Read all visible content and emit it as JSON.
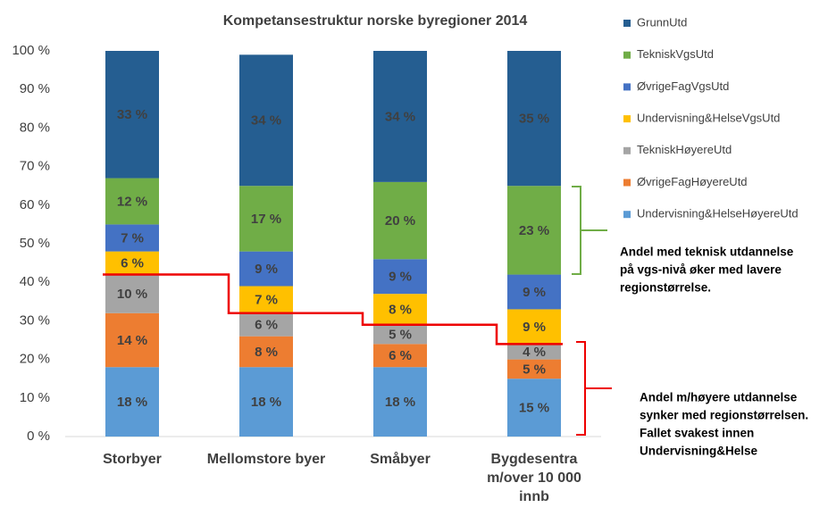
{
  "chart_data": {
    "type": "stacked_bar",
    "title": "Kompetansestruktur  norske byregioner 2014",
    "categories": [
      "Storbyer",
      "Mellomstore byer",
      "Småbyer",
      "Bygdesentra m/over 10 000 innb"
    ],
    "series": [
      {
        "name": "GrunnUtd",
        "color": "#255e91",
        "values": [
          33,
          34,
          34,
          35
        ],
        "value_labels": [
          "33 %",
          "34 %",
          "34 %",
          "35 %"
        ]
      },
      {
        "name": "TekniskVgsUtd",
        "color": "#70ad47",
        "values": [
          12,
          17,
          20,
          23
        ],
        "value_labels": [
          "12 %",
          "17 %",
          "20 %",
          "23 %"
        ]
      },
      {
        "name": "ØvrigeFagVgsUtd",
        "color": "#4472c4",
        "values": [
          7,
          9,
          9,
          9
        ],
        "value_labels": [
          "7 %",
          "9 %",
          "9 %",
          "9 %"
        ]
      },
      {
        "name": "Undervisning&HelseVgsUtd",
        "color": "#ffc000",
        "values": [
          6,
          7,
          8,
          9
        ],
        "value_labels": [
          "6 %",
          "7 %",
          "8 %",
          "9 %"
        ]
      },
      {
        "name": "TekniskHøyereUtd",
        "color": "#a5a5a5",
        "values": [
          10,
          6,
          5,
          4
        ],
        "value_labels": [
          "10 %",
          "6 %",
          "5 %",
          "4 %"
        ]
      },
      {
        "name": "ØvrigeFagHøyereUtd",
        "color": "#ed7d31",
        "values": [
          14,
          8,
          6,
          5
        ],
        "value_labels": [
          "14 %",
          "8 %",
          "6 %",
          "5 %"
        ]
      },
      {
        "name": "Undervisning&HelseHøyereUtd",
        "color": "#5b9bd5",
        "values": [
          18,
          18,
          18,
          15
        ],
        "value_labels": [
          "18 %",
          "18 %",
          "18 %",
          "15 %"
        ]
      }
    ],
    "ylim": [
      0,
      100
    ],
    "yticks": [
      {
        "value": 0,
        "label": "0 %"
      },
      {
        "value": 10,
        "label": "10 %"
      },
      {
        "value": 20,
        "label": "20 %"
      },
      {
        "value": 30,
        "label": "30 %"
      },
      {
        "value": 40,
        "label": "40 %"
      },
      {
        "value": 50,
        "label": "50 %"
      },
      {
        "value": 60,
        "label": "60 %"
      },
      {
        "value": 70,
        "label": "70 %"
      },
      {
        "value": 80,
        "label": "80 %"
      },
      {
        "value": 90,
        "label": "90 %"
      },
      {
        "value": 100,
        "label": "100 %"
      }
    ],
    "grid": false,
    "legend": "right",
    "annotations": [
      [
        "Andel med teknisk utdannelse",
        "på vgs-nivå øker med lavere",
        "regionstørrelse."
      ],
      [
        "Andel m/høyere utdannelse",
        "synker med regionstørrelsen.",
        "Fallet svakest innen",
        "Undervisning&Helse"
      ]
    ]
  }
}
